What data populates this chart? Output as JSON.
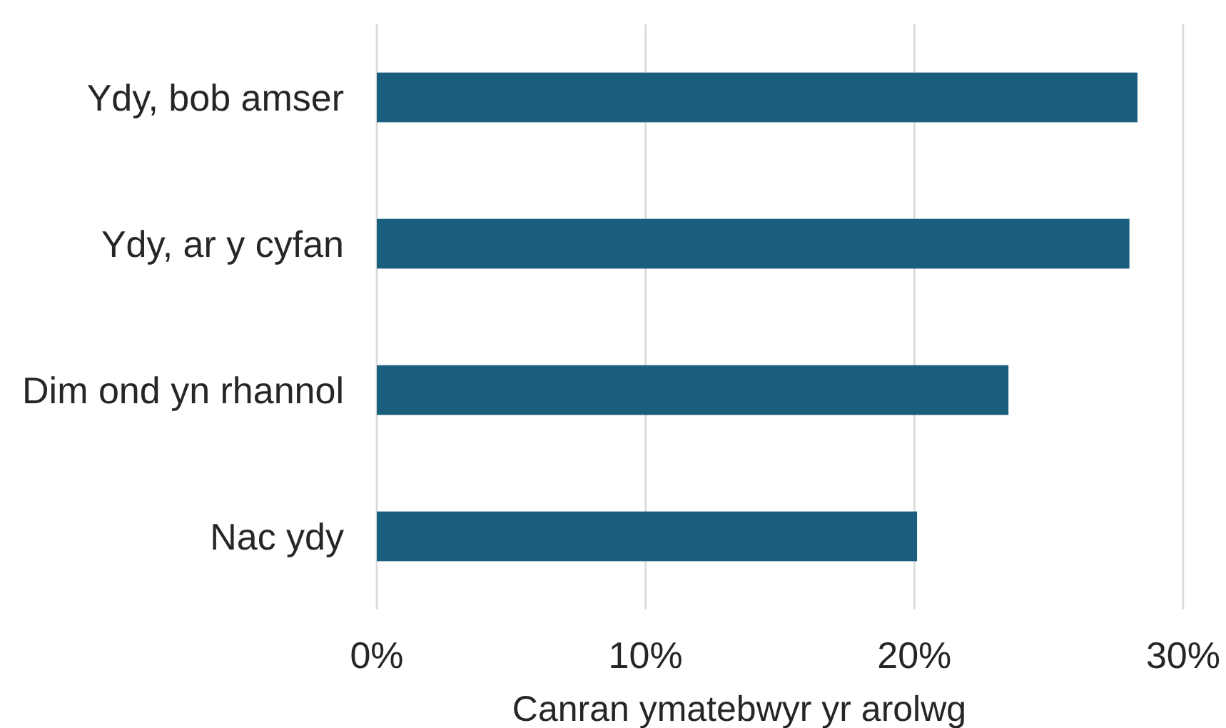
{
  "chart_data": {
    "type": "bar",
    "orientation": "horizontal",
    "categories": [
      "Ydy, bob amser",
      "Ydy, ar y cyfan",
      "Dim ond yn rhannol",
      "Nac ydy"
    ],
    "values": [
      28.3,
      28.0,
      23.5,
      20.1
    ],
    "color": "#1a5e7e",
    "xlim": [
      0,
      30
    ],
    "xticks": [
      {
        "value": 0,
        "label": "0%"
      },
      {
        "value": 10,
        "label": "10%"
      },
      {
        "value": 20,
        "label": "20%"
      },
      {
        "value": 30,
        "label": "30%"
      }
    ],
    "xlabel": "Canran ymatebwyr yr arolwg",
    "grid": "x"
  }
}
